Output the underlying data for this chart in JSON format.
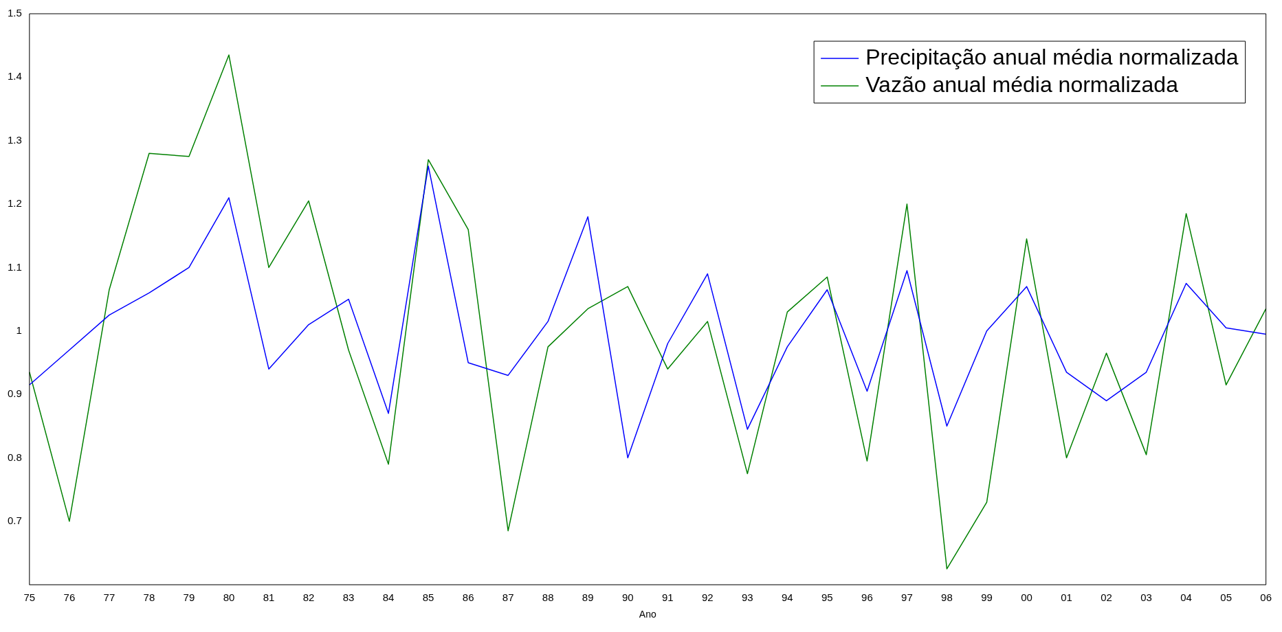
{
  "chart_data": {
    "type": "line",
    "xlabel": "Ano",
    "categories": [
      "75",
      "76",
      "77",
      "78",
      "79",
      "80",
      "81",
      "82",
      "83",
      "84",
      "85",
      "86",
      "87",
      "88",
      "89",
      "90",
      "91",
      "92",
      "93",
      "94",
      "95",
      "96",
      "97",
      "98",
      "99",
      "00",
      "01",
      "02",
      "03",
      "04",
      "05",
      "06"
    ],
    "series": [
      {
        "name": "Precipitação anual média normalizada",
        "color": "#0000ff",
        "values": [
          0.915,
          0.97,
          1.025,
          1.06,
          1.1,
          1.21,
          0.94,
          1.01,
          1.05,
          0.87,
          1.26,
          0.95,
          0.93,
          1.015,
          1.18,
          0.8,
          0.98,
          1.09,
          0.845,
          0.975,
          1.065,
          0.905,
          1.095,
          0.85,
          1.0,
          1.07,
          0.935,
          0.89,
          0.935,
          1.075,
          1.005,
          0.995
        ]
      },
      {
        "name": "Vazão anual média normalizada",
        "color": "#008000",
        "values": [
          0.935,
          0.7,
          1.065,
          1.28,
          1.275,
          1.435,
          1.1,
          1.205,
          0.97,
          0.79,
          1.27,
          1.16,
          0.685,
          0.975,
          1.035,
          1.07,
          0.94,
          1.015,
          0.775,
          1.03,
          1.085,
          0.795,
          1.2,
          0.625,
          0.73,
          1.145,
          0.8,
          0.965,
          0.805,
          1.185,
          0.915,
          1.035
        ]
      }
    ],
    "ylim": [
      0.6,
      1.5
    ],
    "yticks": [
      0.7,
      0.8,
      0.9,
      1,
      1.1,
      1.2,
      1.3,
      1.4,
      1.5
    ],
    "grid": false,
    "legend": "top right",
    "marker": "none",
    "line_style": "solid"
  }
}
